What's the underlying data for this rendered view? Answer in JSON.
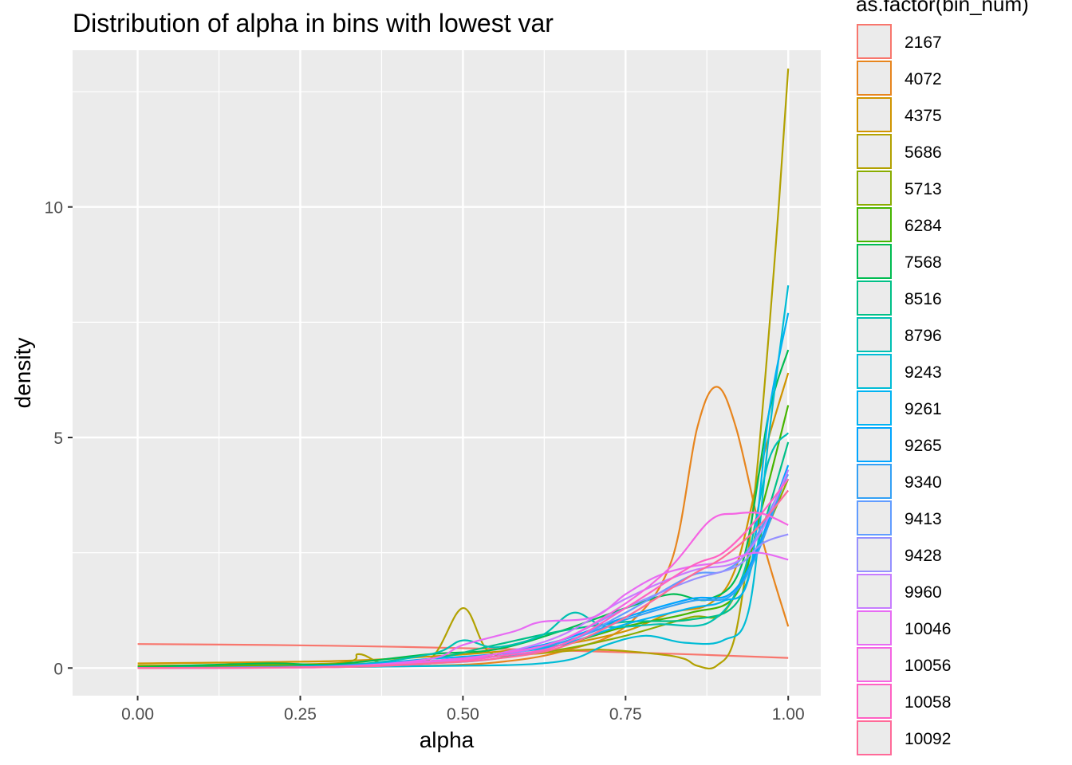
{
  "chart_data": {
    "type": "line",
    "title": "Distribution of alpha in bins with lowest var",
    "xlabel": "alpha",
    "ylabel": "density",
    "xlim": [
      -0.1,
      1.05
    ],
    "ylim": [
      -0.6,
      13.4
    ],
    "x_ticks": [
      {
        "value": 0,
        "label": "0.00"
      },
      {
        "value": 0.25,
        "label": "0.25"
      },
      {
        "value": 0.5,
        "label": "0.50"
      },
      {
        "value": 0.75,
        "label": "0.75"
      },
      {
        "value": 1,
        "label": "1.00"
      }
    ],
    "y_ticks": [
      {
        "value": 0,
        "label": "0"
      },
      {
        "value": 5,
        "label": "5"
      },
      {
        "value": 10,
        "label": "10"
      }
    ],
    "grid": true,
    "legend": {
      "title": "as.factor(bin_num)",
      "position": "right"
    },
    "series": [
      {
        "name": "2167",
        "color": "#F8766D",
        "points": [
          [
            0,
            0.52
          ],
          [
            0.2,
            0.5
          ],
          [
            0.4,
            0.46
          ],
          [
            0.6,
            0.4
          ],
          [
            0.8,
            0.32
          ],
          [
            1,
            0.22
          ]
        ]
      },
      {
        "name": "4072",
        "color": "#E7851E",
        "points": [
          [
            0,
            0
          ],
          [
            0.3,
            0.02
          ],
          [
            0.45,
            0.05
          ],
          [
            0.55,
            0.12
          ],
          [
            0.65,
            0.35
          ],
          [
            0.75,
            0.9
          ],
          [
            0.82,
            2.3
          ],
          [
            0.86,
            5.2
          ],
          [
            0.89,
            6.1
          ],
          [
            0.92,
            5.2
          ],
          [
            0.96,
            2.8
          ],
          [
            1,
            0.9
          ]
        ]
      },
      {
        "name": "4375",
        "color": "#D09400",
        "points": [
          [
            0,
            0.1
          ],
          [
            0.3,
            0.15
          ],
          [
            0.45,
            0.25
          ],
          [
            0.55,
            0.35
          ],
          [
            0.65,
            0.5
          ],
          [
            0.75,
            0.8
          ],
          [
            0.82,
            1.2
          ],
          [
            0.88,
            1.4
          ],
          [
            0.92,
            2.2
          ],
          [
            0.96,
            4.5
          ],
          [
            1,
            6.4
          ]
        ]
      },
      {
        "name": "5686",
        "color": "#B2A100",
        "points": [
          [
            0,
            0.05
          ],
          [
            0.3,
            0.1
          ],
          [
            0.34,
            0.3
          ],
          [
            0.38,
            0.1
          ],
          [
            0.45,
            0.2
          ],
          [
            0.5,
            1.3
          ],
          [
            0.54,
            0.35
          ],
          [
            0.6,
            0.3
          ],
          [
            0.7,
            0.4
          ],
          [
            0.8,
            0.3
          ],
          [
            0.84,
            0.2
          ],
          [
            0.86,
            0.05
          ],
          [
            0.89,
            0.05
          ],
          [
            0.92,
            0.8
          ],
          [
            0.95,
            4
          ],
          [
            0.98,
            9
          ],
          [
            1,
            13
          ]
        ]
      },
      {
        "name": "5713",
        "color": "#89AC00",
        "points": [
          [
            0,
            0.05
          ],
          [
            0.3,
            0.08
          ],
          [
            0.45,
            0.15
          ],
          [
            0.55,
            0.25
          ],
          [
            0.65,
            0.4
          ],
          [
            0.75,
            0.7
          ],
          [
            0.85,
            1.1
          ],
          [
            0.9,
            1.2
          ],
          [
            0.95,
            2.5
          ],
          [
            1,
            4.1
          ]
        ]
      },
      {
        "name": "6284",
        "color": "#45B500",
        "points": [
          [
            0,
            0.02
          ],
          [
            0.3,
            0.05
          ],
          [
            0.45,
            0.12
          ],
          [
            0.55,
            0.3
          ],
          [
            0.65,
            0.5
          ],
          [
            0.75,
            0.9
          ],
          [
            0.85,
            1.2
          ],
          [
            0.92,
            1.6
          ],
          [
            0.96,
            3.5
          ],
          [
            1,
            5.7
          ]
        ]
      },
      {
        "name": "7568",
        "color": "#00BC51",
        "points": [
          [
            0,
            0.02
          ],
          [
            0.2,
            0.1
          ],
          [
            0.3,
            0.08
          ],
          [
            0.45,
            0.3
          ],
          [
            0.55,
            0.4
          ],
          [
            0.65,
            0.8
          ],
          [
            0.75,
            1.3
          ],
          [
            0.82,
            1.6
          ],
          [
            0.88,
            1.5
          ],
          [
            0.93,
            2.3
          ],
          [
            0.97,
            5.5
          ],
          [
            1,
            6.9
          ]
        ]
      },
      {
        "name": "8516",
        "color": "#00C087",
        "points": [
          [
            0,
            0
          ],
          [
            0.3,
            0.05
          ],
          [
            0.45,
            0.2
          ],
          [
            0.55,
            0.5
          ],
          [
            0.65,
            0.8
          ],
          [
            0.75,
            1
          ],
          [
            0.85,
            1.05
          ],
          [
            0.92,
            1.4
          ],
          [
            0.96,
            3
          ],
          [
            1,
            4.9
          ]
        ]
      },
      {
        "name": "8796",
        "color": "#00C0B2",
        "points": [
          [
            0,
            0
          ],
          [
            0.3,
            0.05
          ],
          [
            0.45,
            0.3
          ],
          [
            0.5,
            0.6
          ],
          [
            0.55,
            0.45
          ],
          [
            0.62,
            0.7
          ],
          [
            0.67,
            1.2
          ],
          [
            0.72,
            0.9
          ],
          [
            0.8,
            0.95
          ],
          [
            0.88,
            1
          ],
          [
            0.93,
            2
          ],
          [
            0.97,
            4.5
          ],
          [
            1,
            5.1
          ]
        ]
      },
      {
        "name": "9243",
        "color": "#00BCD6",
        "points": [
          [
            0,
            0
          ],
          [
            0.3,
            0.02
          ],
          [
            0.5,
            0.05
          ],
          [
            0.6,
            0.08
          ],
          [
            0.67,
            0.2
          ],
          [
            0.72,
            0.5
          ],
          [
            0.78,
            0.7
          ],
          [
            0.84,
            0.55
          ],
          [
            0.9,
            0.6
          ],
          [
            0.94,
            1.3
          ],
          [
            0.97,
            5
          ],
          [
            1,
            8.3
          ]
        ]
      },
      {
        "name": "9261",
        "color": "#00B3F2",
        "points": [
          [
            0,
            0
          ],
          [
            0.3,
            0.05
          ],
          [
            0.45,
            0.2
          ],
          [
            0.55,
            0.3
          ],
          [
            0.65,
            0.5
          ],
          [
            0.75,
            0.95
          ],
          [
            0.85,
            1.3
          ],
          [
            0.9,
            1.45
          ],
          [
            0.94,
            2
          ],
          [
            0.97,
            5.5
          ],
          [
            1,
            7.7
          ]
        ]
      },
      {
        "name": "9265",
        "color": "#00A5FF",
        "points": [
          [
            0,
            0
          ],
          [
            0.3,
            0.03
          ],
          [
            0.45,
            0.15
          ],
          [
            0.55,
            0.3
          ],
          [
            0.65,
            0.6
          ],
          [
            0.75,
            1.1
          ],
          [
            0.85,
            1.5
          ],
          [
            0.91,
            1.6
          ],
          [
            0.95,
            2.5
          ],
          [
            1,
            4.4
          ]
        ]
      },
      {
        "name": "9340",
        "color": "#33A0F5",
        "points": [
          [
            0,
            0
          ],
          [
            0.3,
            0.03
          ],
          [
            0.45,
            0.15
          ],
          [
            0.55,
            0.3
          ],
          [
            0.65,
            0.55
          ],
          [
            0.75,
            1.05
          ],
          [
            0.85,
            1.45
          ],
          [
            0.91,
            1.55
          ],
          [
            0.95,
            2.4
          ],
          [
            1,
            4.3
          ]
        ]
      },
      {
        "name": "9413",
        "color": "#619CFF",
        "points": [
          [
            0,
            0
          ],
          [
            0.3,
            0.02
          ],
          [
            0.45,
            0.1
          ],
          [
            0.55,
            0.2
          ],
          [
            0.65,
            0.5
          ],
          [
            0.75,
            1.2
          ],
          [
            0.85,
            2
          ],
          [
            0.9,
            2.1
          ],
          [
            0.94,
            2.6
          ],
          [
            1,
            4.2
          ]
        ]
      },
      {
        "name": "9428",
        "color": "#9590FF",
        "points": [
          [
            0,
            0
          ],
          [
            0.3,
            0.02
          ],
          [
            0.45,
            0.12
          ],
          [
            0.55,
            0.25
          ],
          [
            0.65,
            0.6
          ],
          [
            0.75,
            1.3
          ],
          [
            0.85,
            1.9
          ],
          [
            0.92,
            2.2
          ],
          [
            0.96,
            2.7
          ],
          [
            1,
            2.9
          ]
        ]
      },
      {
        "name": "9960",
        "color": "#C77CFF",
        "points": [
          [
            0,
            0
          ],
          [
            0.3,
            0.02
          ],
          [
            0.45,
            0.12
          ],
          [
            0.55,
            0.3
          ],
          [
            0.65,
            0.7
          ],
          [
            0.75,
            1.5
          ],
          [
            0.85,
            2.1
          ],
          [
            0.92,
            2.3
          ],
          [
            0.96,
            3
          ],
          [
            1,
            4.3
          ]
        ]
      },
      {
        "name": "10046",
        "color": "#E76BF3",
        "points": [
          [
            0,
            0
          ],
          [
            0.3,
            0.03
          ],
          [
            0.45,
            0.2
          ],
          [
            0.5,
            0.5
          ],
          [
            0.58,
            0.8
          ],
          [
            0.62,
            1
          ],
          [
            0.7,
            1.1
          ],
          [
            0.75,
            1.6
          ],
          [
            0.8,
            2
          ],
          [
            0.85,
            2.2
          ],
          [
            0.9,
            2.3
          ],
          [
            0.95,
            2.5
          ],
          [
            1,
            2.35
          ]
        ]
      },
      {
        "name": "10056",
        "color": "#F564E3",
        "points": [
          [
            0,
            0
          ],
          [
            0.3,
            0.02
          ],
          [
            0.45,
            0.15
          ],
          [
            0.55,
            0.3
          ],
          [
            0.65,
            0.6
          ],
          [
            0.75,
            1.4
          ],
          [
            0.82,
            2.2
          ],
          [
            0.88,
            3.2
          ],
          [
            0.92,
            3.35
          ],
          [
            0.96,
            3.35
          ],
          [
            1,
            3.1
          ]
        ]
      },
      {
        "name": "10058",
        "color": "#FF61C3",
        "points": [
          [
            0,
            0
          ],
          [
            0.3,
            0.02
          ],
          [
            0.45,
            0.1
          ],
          [
            0.55,
            0.25
          ],
          [
            0.65,
            0.5
          ],
          [
            0.75,
            1.3
          ],
          [
            0.85,
            2.2
          ],
          [
            0.9,
            2.5
          ],
          [
            0.95,
            3.2
          ],
          [
            1,
            4.1
          ]
        ]
      },
      {
        "name": "10092",
        "color": "#FF6A98",
        "points": [
          [
            0,
            0
          ],
          [
            0.3,
            0.02
          ],
          [
            0.45,
            0.1
          ],
          [
            0.55,
            0.2
          ],
          [
            0.65,
            0.45
          ],
          [
            0.75,
            1.1
          ],
          [
            0.85,
            2
          ],
          [
            0.9,
            2.4
          ],
          [
            0.95,
            3
          ],
          [
            1,
            3.85
          ]
        ]
      }
    ]
  }
}
